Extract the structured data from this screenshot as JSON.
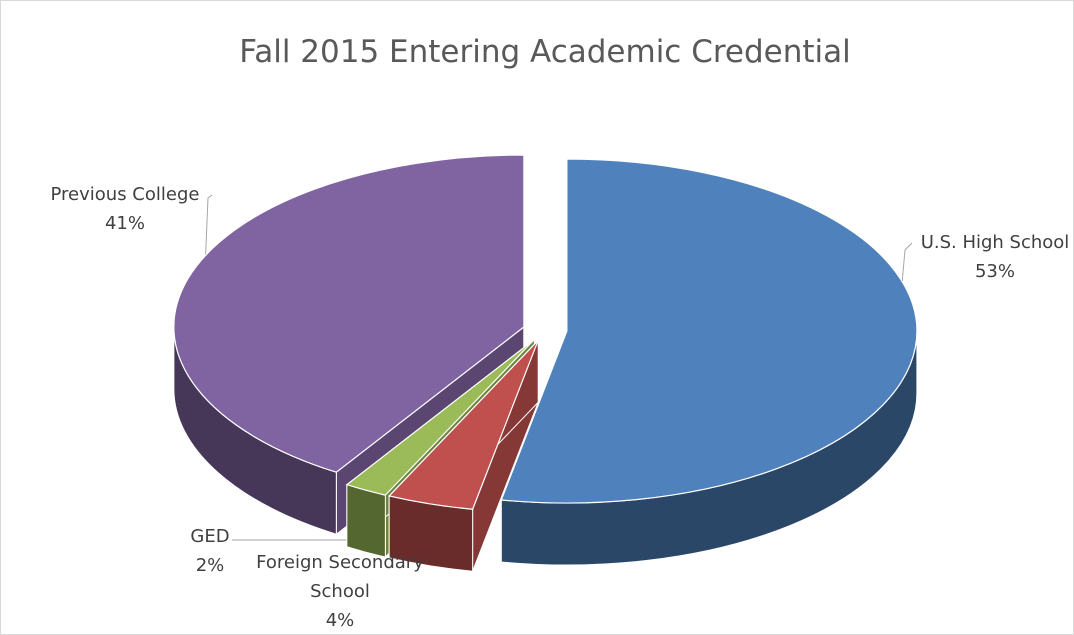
{
  "chart_data": {
    "type": "pie",
    "title": "Fall 2015 Entering Academic Credential",
    "categories": [
      "U.S. High School",
      "Foreign Secondary School",
      "GED",
      "Previous College"
    ],
    "values": [
      53,
      4,
      2,
      41
    ],
    "value_labels": [
      "53%",
      "4%",
      "2%",
      "41%"
    ],
    "colors": [
      "#4f81bd",
      "#c0504d",
      "#9bbb59",
      "#8064a2"
    ]
  }
}
